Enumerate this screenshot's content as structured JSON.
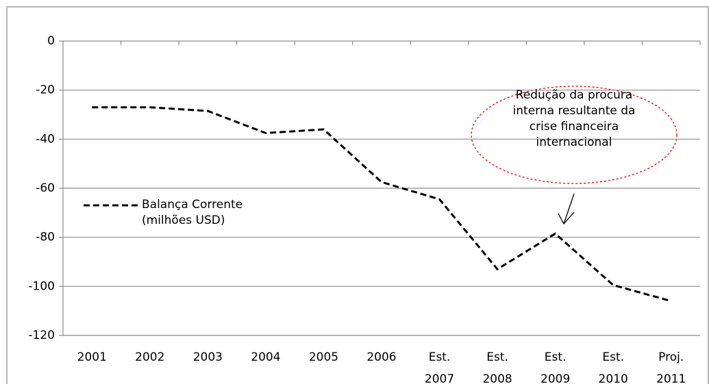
{
  "chart_data": {
    "type": "line",
    "categories": [
      "2001",
      "2002",
      "2003",
      "2004",
      "2005",
      "2006",
      "Est. 2007",
      "Est. 2008",
      "Est. 2009",
      "Est. 2010",
      "Proj. 2011"
    ],
    "series": [
      {
        "name": "Balança Corrente (milhões USD)",
        "color": "#000000",
        "values": [
          -27,
          -27,
          -28.5,
          -37.5,
          -36,
          -57.5,
          -64.5,
          -93,
          -78.5,
          -99.5,
          -106
        ]
      }
    ],
    "ylim": [
      -120,
      0
    ],
    "yticks": [
      -120,
      -100,
      -80,
      -60,
      -40,
      -20,
      0
    ],
    "grid": true,
    "annotation": "Redução da procura interna resultante da crise financeira internacional"
  }
}
